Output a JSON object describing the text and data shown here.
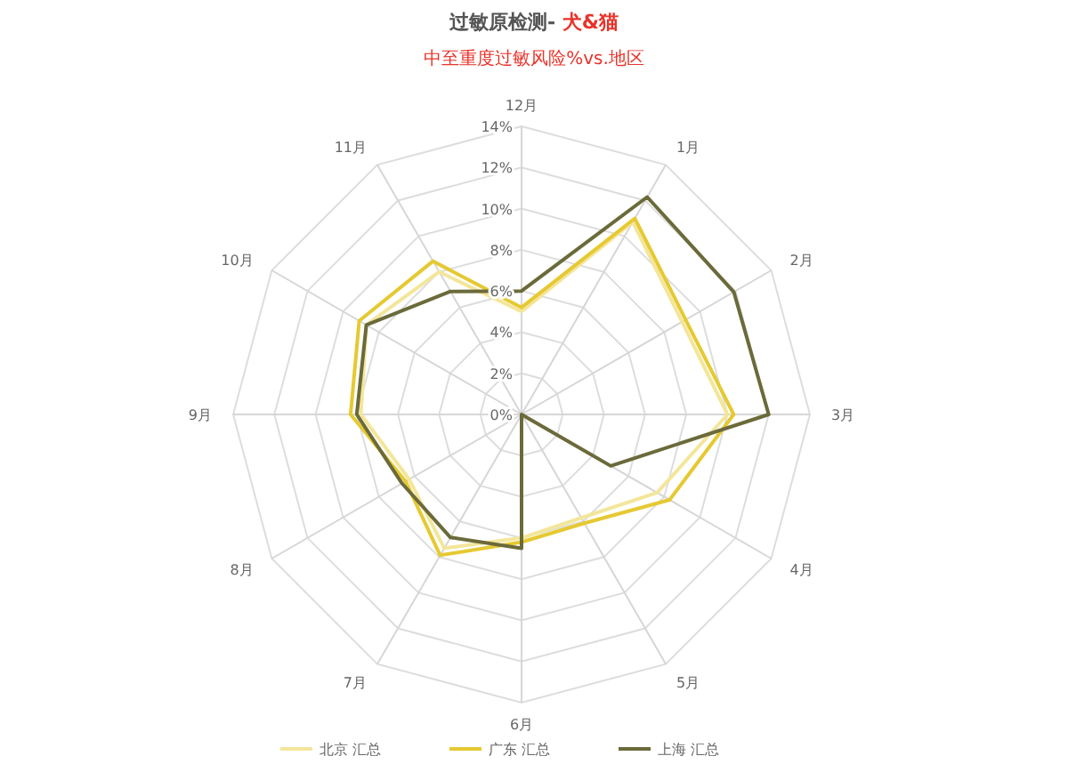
{
  "chart_data": {
    "type": "radar",
    "title": "过敏原检测- 犬&猫",
    "subtitle": "中至重度过敏风险%vs.地区",
    "categories": [
      "12月",
      "1月",
      "2月",
      "3月",
      "4月",
      "5月",
      "6月",
      "7月",
      "8月",
      "9月",
      "10月",
      "11月"
    ],
    "series": [
      {
        "name": "北京 汇总",
        "color": "#f3e69a",
        "values": [
          5.0,
          10.8,
          9.0,
          10.0,
          7.6,
          5.8,
          6.0,
          7.5,
          6.3,
          7.8,
          8.7,
          8.0
        ]
      },
      {
        "name": "广东 汇总",
        "color": "#e6c932",
        "values": [
          5.2,
          11.0,
          9.2,
          10.3,
          8.3,
          6.1,
          6.2,
          7.9,
          6.5,
          8.3,
          9.1,
          8.6
        ]
      },
      {
        "name": "上海 汇总",
        "color": "#6b6a3a",
        "values": [
          6.0,
          12.2,
          11.9,
          12.0,
          5.0,
          0,
          6.5,
          6.9,
          6.7,
          8.0,
          8.7,
          6.9
        ]
      }
    ],
    "ylim": [
      0,
      14
    ],
    "yticks": [
      {
        "value": 0,
        "label": "0%"
      },
      {
        "value": 2,
        "label": "2%"
      },
      {
        "value": 4,
        "label": "4%"
      },
      {
        "value": 6,
        "label": "6%"
      },
      {
        "value": 8,
        "label": "8%"
      },
      {
        "value": 10,
        "label": "10%"
      },
      {
        "value": 12,
        "label": "12%"
      },
      {
        "value": 14,
        "label": "14%"
      }
    ],
    "grid": true,
    "legend": "bottom",
    "line_style": "solid",
    "marker": "none"
  }
}
